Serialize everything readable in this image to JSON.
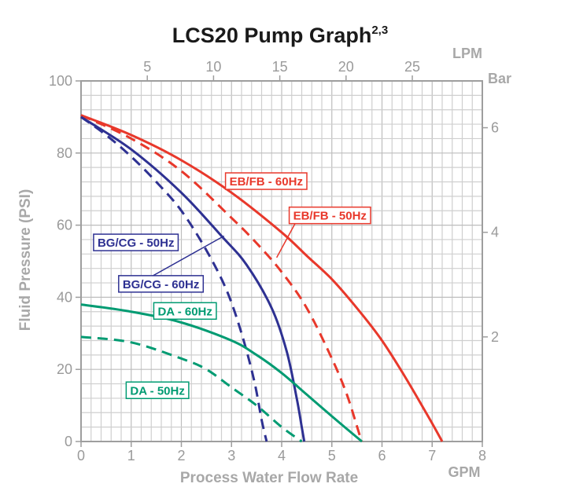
{
  "chart_data": {
    "type": "line",
    "title": "LCS20 Pump Graph",
    "title_superscript": "2,3",
    "xlabel": "Process Water Flow Rate",
    "ylabel": "Fluid Pressure (PSI)",
    "x_unit": "GPM",
    "top_axis_unit": "LPM",
    "right_axis_unit": "Bar",
    "xlim": [
      0,
      8
    ],
    "ylim": [
      0,
      100
    ],
    "grid": true,
    "x_ticks": [
      0,
      1,
      2,
      3,
      4,
      5,
      6,
      7,
      8
    ],
    "y_ticks": [
      0,
      20,
      40,
      60,
      80,
      100
    ],
    "top_ticks": [
      5,
      10,
      15,
      20,
      25
    ],
    "right_ticks": [
      2,
      4,
      6
    ],
    "colors": {
      "red": "#e8382b",
      "blue": "#2e3192",
      "green": "#009b72"
    },
    "series": [
      {
        "name": "EB/FB - 60Hz",
        "color": "red",
        "dash": false,
        "x": [
          0,
          1,
          2,
          3,
          4,
          4.5,
          5,
          5.5,
          6,
          6.5,
          7,
          7.2
        ],
        "y": [
          90.5,
          85,
          78,
          69,
          58,
          51.5,
          45,
          37,
          28,
          17,
          5,
          0
        ]
      },
      {
        "name": "EB/FB - 50Hz",
        "color": "red",
        "dash": true,
        "x": [
          0,
          1,
          2,
          3,
          3.5,
          4,
          4.5,
          5,
          5.3,
          5.55,
          5.6
        ],
        "y": [
          90.5,
          84,
          75,
          62,
          55,
          47,
          37,
          23,
          13,
          2,
          0
        ]
      },
      {
        "name": "BG/CG - 60Hz",
        "color": "blue",
        "dash": false,
        "x": [
          0,
          1,
          2,
          2.8,
          3.3,
          3.8,
          4.1,
          4.3,
          4.4,
          4.45
        ],
        "y": [
          90,
          81,
          69,
          57,
          49,
          37,
          25,
          12,
          4,
          0
        ]
      },
      {
        "name": "BG/CG - 50Hz",
        "color": "blue",
        "dash": true,
        "x": [
          0,
          0.5,
          1,
          1.5,
          2,
          2.5,
          2.9,
          3.2,
          3.45,
          3.6,
          3.7
        ],
        "y": [
          90,
          85,
          79,
          72,
          64,
          53,
          42,
          30,
          17,
          6,
          0
        ]
      },
      {
        "name": "DA - 60Hz",
        "color": "green",
        "dash": false,
        "x": [
          0,
          1,
          2,
          3,
          3.5,
          4,
          4.5,
          5,
          5.6
        ],
        "y": [
          38,
          36,
          33,
          28,
          24,
          19,
          13,
          7,
          0
        ]
      },
      {
        "name": "DA - 50Hz",
        "color": "green",
        "dash": true,
        "x": [
          0,
          1,
          2,
          2.5,
          3,
          3.5,
          4,
          4.4
        ],
        "y": [
          29,
          27.5,
          23,
          20,
          15,
          10,
          4,
          0
        ]
      }
    ],
    "annotations": [
      {
        "label": "EB/FB - 60Hz",
        "color": "red",
        "box_x": 2.88,
        "box_y": 74.5
      },
      {
        "label": "EB/FB - 50Hz",
        "color": "red",
        "box_x": 4.15,
        "box_y": 65,
        "leader_to": [
          3.9,
          51
        ]
      },
      {
        "label": "BG/CG - 50Hz",
        "color": "blue",
        "box_x": 0.25,
        "box_y": 57.5
      },
      {
        "label": "BG/CG - 60Hz",
        "color": "blue",
        "box_x": 0.75,
        "box_y": 46,
        "leader_to": [
          2.85,
          57
        ]
      },
      {
        "label": "DA - 60Hz",
        "color": "green",
        "box_x": 1.45,
        "box_y": 38.5
      },
      {
        "label": "DA - 50Hz",
        "color": "green",
        "box_x": 0.9,
        "box_y": 16.5
      }
    ]
  }
}
